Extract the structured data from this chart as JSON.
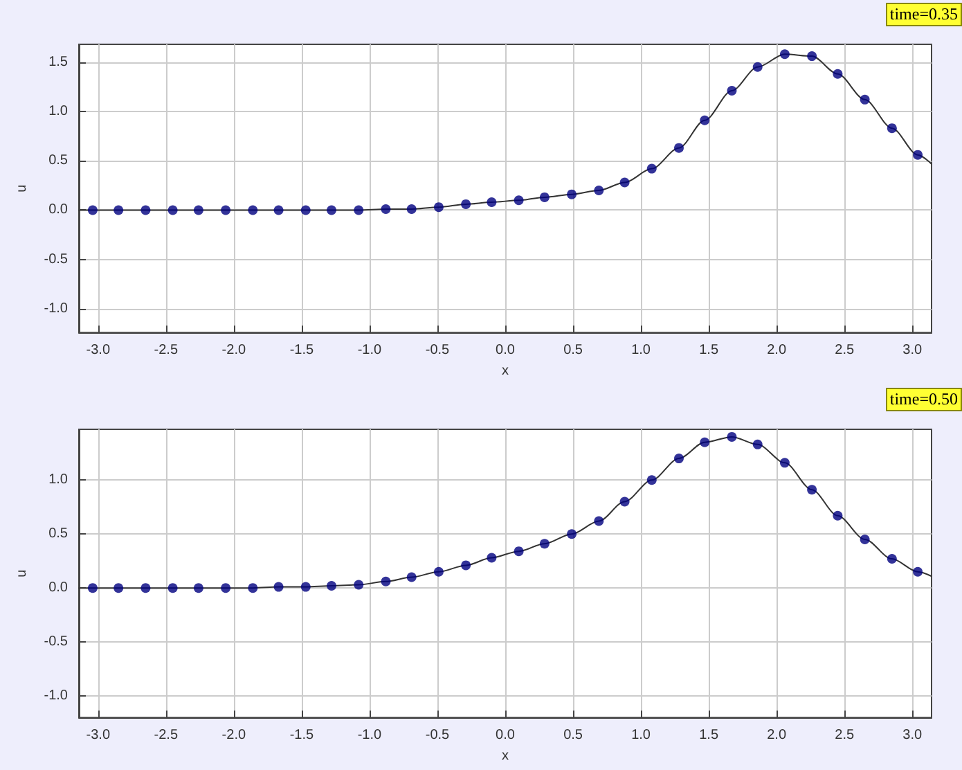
{
  "chart_data": [
    {
      "type": "scatter",
      "xlabel": "x",
      "ylabel": "u",
      "annotations": [
        "time=0.35"
      ],
      "grid": true,
      "xlim": [
        -3.1416,
        3.1416
      ],
      "ylim": [
        -1.24,
        1.68
      ],
      "xticks": [
        {
          "value": -3,
          "label": "-3.0"
        },
        {
          "value": -2.5,
          "label": "-2.5"
        },
        {
          "value": -2,
          "label": "-2.0"
        },
        {
          "value": -1.5,
          "label": "-1.5"
        },
        {
          "value": -1,
          "label": "-1.0"
        },
        {
          "value": -0.5,
          "label": "-0.5"
        },
        {
          "value": 0,
          "label": "0.0"
        },
        {
          "value": 0.5,
          "label": "0.5"
        },
        {
          "value": 1,
          "label": "1.0"
        },
        {
          "value": 1.5,
          "label": "1.5"
        },
        {
          "value": 2,
          "label": "2.0"
        },
        {
          "value": 2.5,
          "label": "2.5"
        },
        {
          "value": 3,
          "label": "3.0"
        }
      ],
      "yticks": [
        {
          "value": -1,
          "label": "-1.0"
        },
        {
          "value": -0.5,
          "label": "-0.5"
        },
        {
          "value": 0,
          "label": "0.0"
        },
        {
          "value": 0.5,
          "label": "0.5"
        },
        {
          "value": 1,
          "label": "1.0"
        },
        {
          "value": 1.5,
          "label": "1.5"
        }
      ],
      "series": [
        {
          "type": "line",
          "color": "#333333",
          "marker": "none",
          "line_style": "solid",
          "x": [
            -3.14,
            -3.04,
            -2.85,
            -2.65,
            -2.45,
            -2.26,
            -2.06,
            -1.86,
            -1.67,
            -1.47,
            -1.28,
            -1.08,
            -0.88,
            -0.69,
            -0.49,
            -0.29,
            -0.1,
            0.1,
            0.29,
            0.49,
            0.69,
            0.88,
            1.08,
            1.28,
            1.47,
            1.67,
            1.86,
            2.06,
            2.26,
            2.45,
            2.65,
            2.85,
            3.04,
            3.14
          ],
          "values": [
            0,
            0,
            0,
            0,
            0,
            0,
            0,
            0,
            0,
            0,
            0,
            0,
            0.01,
            0.01,
            0.03,
            0.06,
            0.08,
            0.1,
            0.13,
            0.16,
            0.2,
            0.28,
            0.42,
            0.63,
            0.91,
            1.21,
            1.45,
            1.58,
            1.56,
            1.38,
            1.12,
            0.83,
            0.56,
            0.47
          ]
        },
        {
          "color": "#000080",
          "marker": "circle",
          "x": [
            -3.04,
            -2.85,
            -2.65,
            -2.45,
            -2.26,
            -2.06,
            -1.86,
            -1.67,
            -1.47,
            -1.28,
            -1.08,
            -0.88,
            -0.69,
            -0.49,
            -0.29,
            -0.1,
            0.1,
            0.29,
            0.49,
            0.69,
            0.88,
            1.08,
            1.28,
            1.47,
            1.67,
            1.86,
            2.06,
            2.26,
            2.45,
            2.65,
            2.85,
            3.04
          ],
          "values": [
            0,
            0,
            0,
            0,
            0,
            0,
            0,
            0,
            0,
            0,
            0,
            0.01,
            0.01,
            0.03,
            0.06,
            0.08,
            0.1,
            0.13,
            0.16,
            0.2,
            0.28,
            0.42,
            0.63,
            0.91,
            1.21,
            1.45,
            1.58,
            1.56,
            1.38,
            1.12,
            0.83,
            0.56
          ]
        }
      ]
    },
    {
      "type": "scatter",
      "xlabel": "x",
      "ylabel": "u",
      "annotations": [
        "time=0.50"
      ],
      "grid": true,
      "xlim": [
        -3.1416,
        3.1416
      ],
      "ylim": [
        -1.2,
        1.47
      ],
      "xticks": [
        {
          "value": -3,
          "label": "-3.0"
        },
        {
          "value": -2.5,
          "label": "-2.5"
        },
        {
          "value": -2,
          "label": "-2.0"
        },
        {
          "value": -1.5,
          "label": "-1.5"
        },
        {
          "value": -1,
          "label": "-1.0"
        },
        {
          "value": -0.5,
          "label": "-0.5"
        },
        {
          "value": 0,
          "label": "0.0"
        },
        {
          "value": 0.5,
          "label": "0.5"
        },
        {
          "value": 1,
          "label": "1.0"
        },
        {
          "value": 1.5,
          "label": "1.5"
        },
        {
          "value": 2,
          "label": "2.0"
        },
        {
          "value": 2.5,
          "label": "2.5"
        },
        {
          "value": 3,
          "label": "3.0"
        }
      ],
      "yticks": [
        {
          "value": -1,
          "label": "-1.0"
        },
        {
          "value": -0.5,
          "label": "-0.5"
        },
        {
          "value": 0,
          "label": "0.0"
        },
        {
          "value": 0.5,
          "label": "0.5"
        },
        {
          "value": 1,
          "label": "1.0"
        }
      ],
      "series": [
        {
          "type": "line",
          "color": "#333333",
          "marker": "none",
          "line_style": "solid",
          "x": [
            -3.14,
            -3.04,
            -2.85,
            -2.65,
            -2.45,
            -2.26,
            -2.06,
            -1.86,
            -1.67,
            -1.47,
            -1.28,
            -1.08,
            -0.88,
            -0.69,
            -0.49,
            -0.29,
            -0.1,
            0.1,
            0.29,
            0.49,
            0.69,
            0.88,
            1.08,
            1.28,
            1.47,
            1.67,
            1.86,
            2.06,
            2.26,
            2.45,
            2.65,
            2.85,
            3.04,
            3.14
          ],
          "values": [
            0,
            0,
            0,
            0,
            0,
            0,
            0,
            0,
            0.01,
            0.01,
            0.02,
            0.03,
            0.06,
            0.1,
            0.15,
            0.21,
            0.28,
            0.34,
            0.41,
            0.5,
            0.62,
            0.8,
            1.0,
            1.2,
            1.35,
            1.4,
            1.33,
            1.16,
            0.91,
            0.67,
            0.45,
            0.27,
            0.15,
            0.11
          ]
        },
        {
          "color": "#000080",
          "marker": "circle",
          "x": [
            -3.04,
            -2.85,
            -2.65,
            -2.45,
            -2.26,
            -2.06,
            -1.86,
            -1.67,
            -1.47,
            -1.28,
            -1.08,
            -0.88,
            -0.69,
            -0.49,
            -0.29,
            -0.1,
            0.1,
            0.29,
            0.49,
            0.69,
            0.88,
            1.08,
            1.28,
            1.47,
            1.67,
            1.86,
            2.06,
            2.26,
            2.45,
            2.65,
            2.85,
            3.04
          ],
          "values": [
            0,
            0,
            0,
            0,
            0,
            0,
            0,
            0.01,
            0.01,
            0.02,
            0.03,
            0.06,
            0.1,
            0.15,
            0.21,
            0.28,
            0.34,
            0.41,
            0.5,
            0.62,
            0.8,
            1.0,
            1.2,
            1.35,
            1.4,
            1.33,
            1.16,
            0.91,
            0.67,
            0.45,
            0.27,
            0.15
          ]
        }
      ]
    }
  ]
}
